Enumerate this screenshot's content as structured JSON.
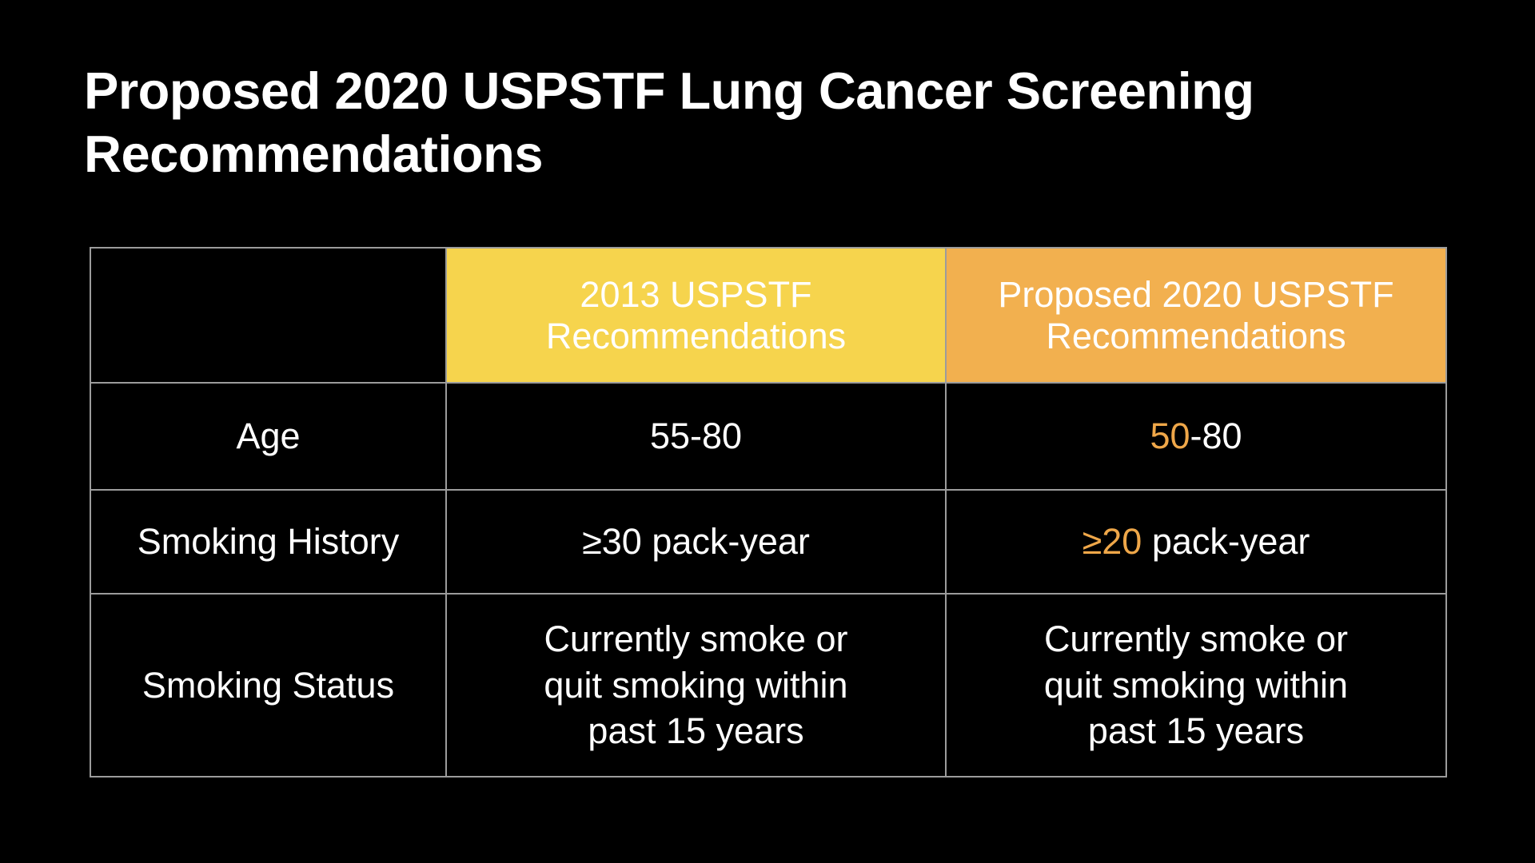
{
  "title": {
    "lines": [
      "Proposed 2020 USPSTF Lung Cancer Screening",
      "Recommendations"
    ]
  },
  "colors": {
    "background": "#000000",
    "title_text": "#ffffff",
    "header_2013_fill": "#f6d44d",
    "header_2020_fill": "#f2b04f",
    "header_text": "#000000",
    "body_text": "#ffffff",
    "changed_value_text": "#efa749",
    "grid_border": "#9c9c9c"
  },
  "table": {
    "header": {
      "corner": "",
      "col2013": {
        "lines": [
          "2013 USPSTF",
          "Recommendations"
        ]
      },
      "col2020": {
        "lines": [
          "Proposed 2020 USPSTF",
          "Recommendations"
        ]
      }
    },
    "rows": {
      "age": {
        "label": "Age",
        "val2013": "55-80",
        "val2020_changed": "50",
        "val2020_same": "-80"
      },
      "smoking_history": {
        "label": "Smoking History",
        "val2013": "≥30 pack-year",
        "val2020_changed": "≥20",
        "val2020_same": " pack-year"
      },
      "smoking_status": {
        "label": "Smoking Status",
        "val2013": {
          "lines": [
            "Currently smoke or",
            "quit smoking within",
            "past 15 years"
          ]
        },
        "val2020": {
          "lines": [
            "Currently smoke or",
            "quit smoking within",
            "past 15 years"
          ]
        }
      }
    }
  }
}
